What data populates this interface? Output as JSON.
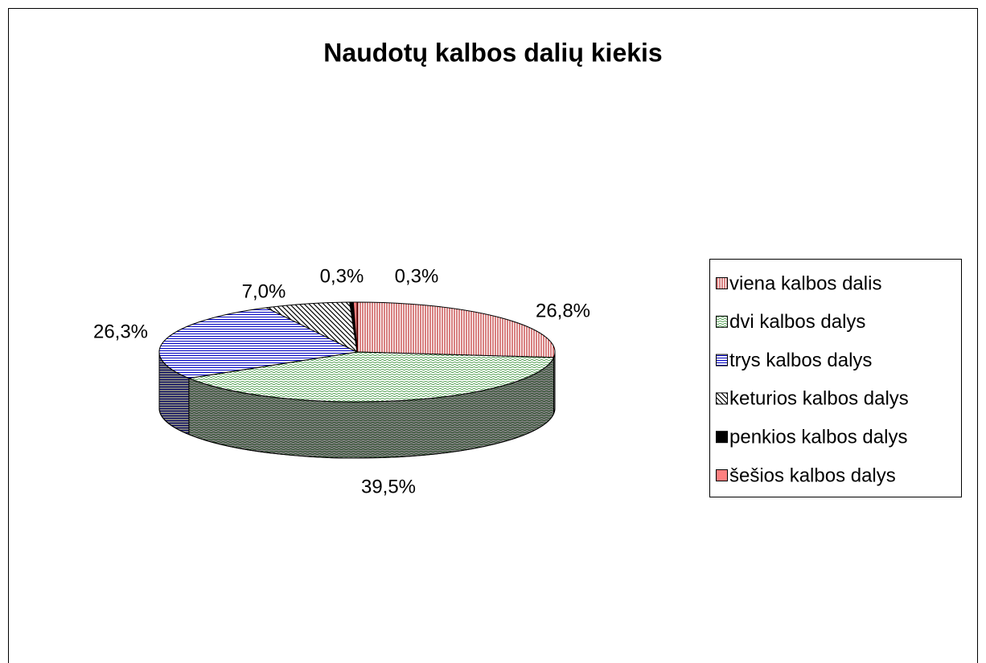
{
  "chart_data": {
    "type": "pie3d",
    "title": "Naudotų kalbos dalių kiekis",
    "categories": [
      "viena kalbos dalis",
      "dvi kalbos dalys",
      "trys kalbos dalys",
      "keturios kalbos dalys",
      "penkios kalbos dalys",
      "šešios kalbos dalys"
    ],
    "values": [
      26.8,
      39.5,
      26.3,
      7.0,
      0.3,
      0.3
    ],
    "value_labels": [
      "26,8%",
      "39,5%",
      "26,3%",
      "7,0%",
      "0,3%",
      "0,3%"
    ],
    "colors": [
      "#b00000",
      "#2e8b2e",
      "#0000c0",
      "#000000",
      "#000000",
      "#ff8080"
    ],
    "fill_patterns": [
      "vertical",
      "dots",
      "horizontal",
      "diagonal",
      "solid",
      "solid"
    ],
    "legend": "right"
  }
}
